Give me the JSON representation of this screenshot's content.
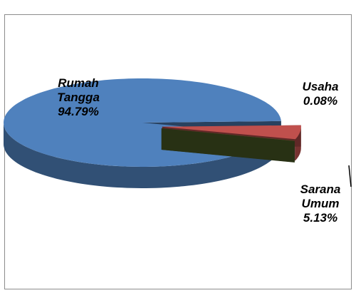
{
  "chart_data": {
    "type": "pie3d",
    "categories": [
      "Rumah Tangga",
      "Sarana Umum",
      "Usaha"
    ],
    "values": [
      94.79,
      5.13,
      0.08
    ],
    "value_labels": [
      "94.79%",
      "5.13%",
      "0.08%"
    ],
    "colors": [
      "#4f81bd",
      "#c0504d",
      "#4f6228"
    ]
  }
}
